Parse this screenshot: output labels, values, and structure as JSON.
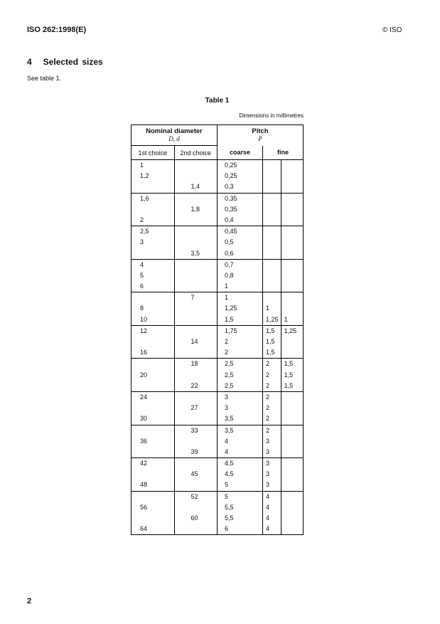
{
  "header": {
    "doc_id": "ISO 262:1998(E)",
    "copyright": "© ISO"
  },
  "section": {
    "title": "4   Selected sizes",
    "intro": "See table 1."
  },
  "table": {
    "title": "Table 1",
    "units": "Dimensions in millimetres",
    "headers": {
      "nominal": "Nominal diameter",
      "nominal_symbol": "D, d",
      "pitch": "Pitch",
      "pitch_symbol": "P",
      "first_choice": "1st choice",
      "second_choice": "2nd choice",
      "coarse": "coarse",
      "fine": "fine"
    },
    "groups": [
      [
        [
          "1",
          "",
          "0,25",
          "",
          ""
        ],
        [
          "1,2",
          "",
          "0,25",
          "",
          ""
        ],
        [
          "",
          "1,4",
          "0,3",
          "",
          ""
        ]
      ],
      [
        [
          "1,6",
          "",
          "0,35",
          "",
          ""
        ],
        [
          "",
          "1,8",
          "0,35",
          "",
          ""
        ],
        [
          "2",
          "",
          "0,4",
          "",
          ""
        ]
      ],
      [
        [
          "2,5",
          "",
          "0,45",
          "",
          ""
        ],
        [
          "3",
          "",
          "0,5",
          "",
          ""
        ],
        [
          "",
          "3,5",
          "0,6",
          "",
          ""
        ]
      ],
      [
        [
          "4",
          "",
          "0,7",
          "",
          ""
        ],
        [
          "5",
          "",
          "0,8",
          "",
          ""
        ],
        [
          "6",
          "",
          "1",
          "",
          ""
        ]
      ],
      [
        [
          "",
          "7",
          "1",
          "",
          ""
        ],
        [
          "8",
          "",
          "1,25",
          "1",
          ""
        ],
        [
          "10",
          "",
          "1,5",
          "1,25",
          "1"
        ]
      ],
      [
        [
          "12",
          "",
          "1,75",
          "1,5",
          "1,25"
        ],
        [
          "",
          "14",
          "2",
          "1,5",
          ""
        ],
        [
          "16",
          "",
          "2",
          "1,5",
          ""
        ]
      ],
      [
        [
          "",
          "18",
          "2,5",
          "2",
          "1,5"
        ],
        [
          "20",
          "",
          "2,5",
          "2",
          "1,5"
        ],
        [
          "",
          "22",
          "2,5",
          "2",
          "1,5"
        ]
      ],
      [
        [
          "24",
          "",
          "3",
          "2",
          ""
        ],
        [
          "",
          "27",
          "3",
          "2",
          ""
        ],
        [
          "30",
          "",
          "3,5",
          "2",
          ""
        ]
      ],
      [
        [
          "",
          "33",
          "3,5",
          "2",
          ""
        ],
        [
          "36",
          "",
          "4",
          "3",
          ""
        ],
        [
          "",
          "39",
          "4",
          "3",
          ""
        ]
      ],
      [
        [
          "42",
          "",
          "4,5",
          "3",
          ""
        ],
        [
          "",
          "45",
          "4,5",
          "3",
          ""
        ],
        [
          "48",
          "",
          "5",
          "3",
          ""
        ]
      ],
      [
        [
          "",
          "52",
          "5",
          "4",
          ""
        ],
        [
          "56",
          "",
          "5,5",
          "4",
          ""
        ],
        [
          "",
          "60",
          "5,5",
          "4",
          ""
        ],
        [
          "64",
          "",
          "6",
          "4",
          ""
        ]
      ]
    ]
  },
  "footer": {
    "page_number": "2"
  }
}
